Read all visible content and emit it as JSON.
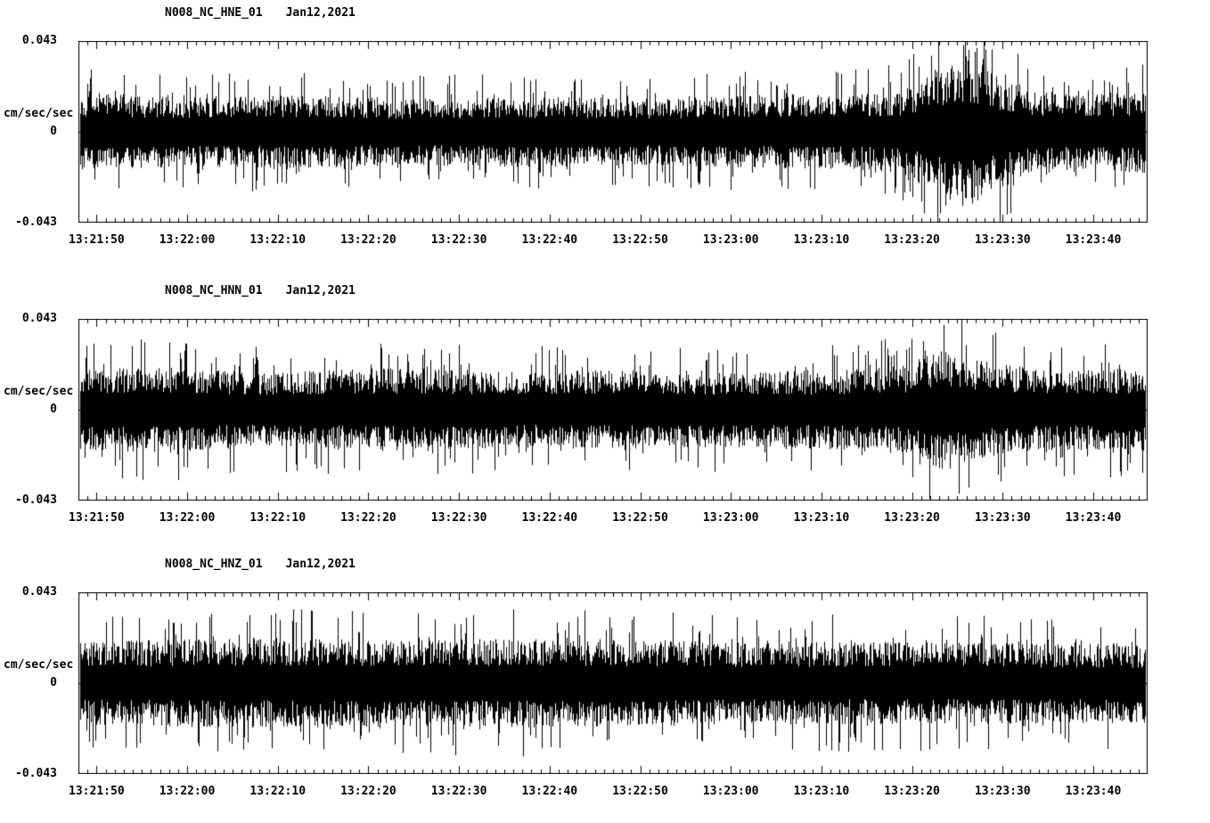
{
  "colors": {
    "background": "#ffffff",
    "trace": "#000000",
    "text": "#000000"
  },
  "chart_data": [
    {
      "type": "line",
      "chart_kind": "seismogram-noise-trace",
      "station_label": "N008_NC_HNE_01",
      "date_label": "Jan12,2021",
      "ylabel": "cm/sec/sec",
      "ylim": [
        -0.043,
        0.043
      ],
      "ytick_labels": [
        "0.043",
        "0",
        "-0.043"
      ],
      "xtick_labels": [
        "13:21:50",
        "13:22:00",
        "13:22:10",
        "13:22:20",
        "13:22:30",
        "13:22:40",
        "13:22:50",
        "13:23:00",
        "13:23:10",
        "13:23:20",
        "13:23:30",
        "13:23:40"
      ],
      "x_major_interval_s": 10,
      "x_minor_interval_s": 1,
      "duration_s": 118,
      "first_tick_offset_s": 2,
      "noise_envelope": [
        [
          0,
          0.48
        ],
        [
          0.1,
          0.44
        ],
        [
          0.2,
          0.46
        ],
        [
          0.3,
          0.42
        ],
        [
          0.42,
          0.44
        ],
        [
          0.55,
          0.42
        ],
        [
          0.65,
          0.46
        ],
        [
          0.72,
          0.46
        ],
        [
          0.77,
          0.52
        ],
        [
          0.8,
          0.75
        ],
        [
          0.83,
          0.95
        ],
        [
          0.86,
          0.7
        ],
        [
          0.89,
          0.52
        ],
        [
          0.94,
          0.46
        ],
        [
          1,
          0.52
        ]
      ],
      "seed": 101
    },
    {
      "type": "line",
      "chart_kind": "seismogram-noise-trace",
      "station_label": "N008_NC_HNN_01",
      "date_label": "Jan12,2021",
      "ylabel": "cm/sec/sec",
      "ylim": [
        -0.043,
        0.043
      ],
      "ytick_labels": [
        "0.043",
        "0",
        "-0.043"
      ],
      "xtick_labels": [
        "13:21:50",
        "13:22:00",
        "13:22:10",
        "13:22:20",
        "13:22:30",
        "13:22:40",
        "13:22:50",
        "13:23:00",
        "13:23:10",
        "13:23:20",
        "13:23:30",
        "13:23:40"
      ],
      "x_major_interval_s": 10,
      "x_minor_interval_s": 1,
      "duration_s": 118,
      "first_tick_offset_s": 2,
      "noise_envelope": [
        [
          0,
          0.5
        ],
        [
          0.08,
          0.54
        ],
        [
          0.18,
          0.46
        ],
        [
          0.28,
          0.52
        ],
        [
          0.4,
          0.48
        ],
        [
          0.52,
          0.5
        ],
        [
          0.62,
          0.46
        ],
        [
          0.72,
          0.5
        ],
        [
          0.78,
          0.56
        ],
        [
          0.81,
          0.78
        ],
        [
          0.84,
          0.62
        ],
        [
          0.9,
          0.5
        ],
        [
          1,
          0.52
        ]
      ],
      "seed": 202
    },
    {
      "type": "line",
      "chart_kind": "seismogram-noise-trace",
      "station_label": "N008_NC_HNZ_01",
      "date_label": "Jan12,2021",
      "ylabel": "cm/sec/sec",
      "ylim": [
        -0.043,
        0.043
      ],
      "ytick_labels": [
        "0.043",
        "0",
        "-0.043"
      ],
      "xtick_labels": [
        "13:21:50",
        "13:22:00",
        "13:22:10",
        "13:22:20",
        "13:22:30",
        "13:22:40",
        "13:22:50",
        "13:23:00",
        "13:23:10",
        "13:23:20",
        "13:23:30",
        "13:23:40"
      ],
      "x_major_interval_s": 10,
      "x_minor_interval_s": 1,
      "duration_s": 118,
      "first_tick_offset_s": 2,
      "noise_envelope": [
        [
          0,
          0.52
        ],
        [
          0.15,
          0.56
        ],
        [
          0.3,
          0.54
        ],
        [
          0.45,
          0.56
        ],
        [
          0.6,
          0.52
        ],
        [
          0.75,
          0.52
        ],
        [
          0.9,
          0.5
        ],
        [
          1,
          0.5
        ]
      ],
      "seed": 303
    }
  ]
}
